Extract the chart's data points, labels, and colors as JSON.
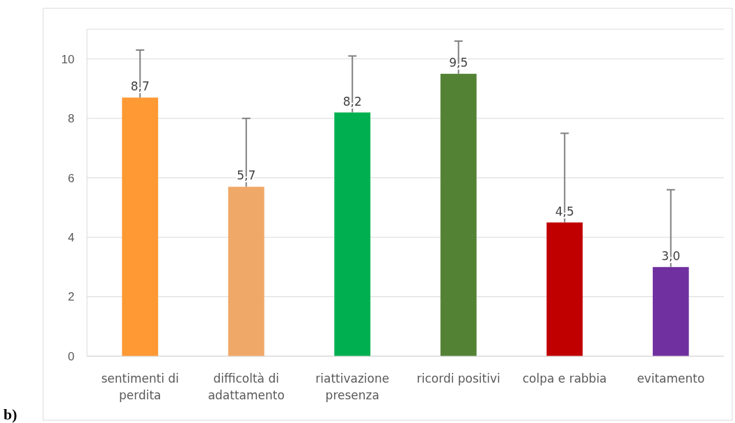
{
  "chart_data": {
    "type": "bar",
    "categories": [
      "sentimenti di perdita",
      "difficoltà di adattamento",
      "riattivazione presenza",
      "ricordi positivi",
      "colpa e rabbia",
      "evitamento"
    ],
    "values": [
      8.7,
      5.7,
      8.2,
      9.5,
      4.5,
      3.0
    ],
    "colors": [
      "#ff9933",
      "#f0a868",
      "#00b050",
      "#548235",
      "#c00000",
      "#7030a0"
    ],
    "errors": [
      [
        8.7,
        10.3
      ],
      [
        5.7,
        8.0
      ],
      [
        8.2,
        10.1
      ],
      [
        9.5,
        10.6
      ],
      [
        4.5,
        7.5
      ],
      [
        3.0,
        5.6
      ]
    ],
    "value_labels": [
      "8,7",
      "5,7",
      "8,2",
      "9,5",
      "4,5",
      "3,0"
    ],
    "ylim": [
      0,
      11
    ],
    "yticks": [
      0,
      2,
      4,
      6,
      8,
      10
    ],
    "grid": "y",
    "annotations": [
      "b)"
    ]
  }
}
